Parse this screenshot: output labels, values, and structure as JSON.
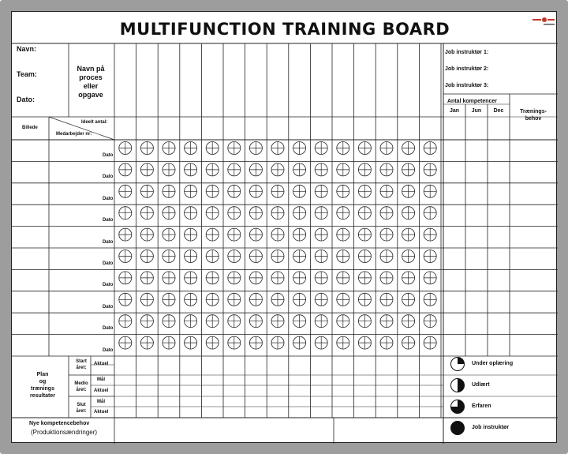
{
  "title": "MULTIFUNCTION TRAINING BOARD",
  "header": {
    "navn": "Navn:",
    "team": "Team:",
    "dato": "Dato:",
    "process_lines": [
      "Navn på",
      "proces",
      "eller",
      "opgave"
    ],
    "job_instructors": [
      "Job instruktør 1:",
      "Job instruktør 2:",
      "Job instruktør 3:"
    ],
    "antal_kompetencer": "Antal kompetencer",
    "months": [
      "Jan",
      "Jun",
      "Dec"
    ],
    "training_need_lines": [
      "Trænings-",
      "behov"
    ]
  },
  "subheader": {
    "billede": "Billede",
    "ideelt_antal": "Ideelt antal:",
    "medarbejder_nr": "Medarbejder nr:"
  },
  "rows": {
    "dato_label": "Dato",
    "count": 10,
    "columns": 15
  },
  "plan": {
    "label_lines": [
      "Plan",
      "og",
      "trænings",
      "resultater"
    ],
    "groups": [
      {
        "label_lines": [
          "Start",
          "året:"
        ],
        "items": [
          "Aktuel"
        ]
      },
      {
        "label_lines": [
          "Medio",
          "året:"
        ],
        "items": [
          "Mål",
          "Aktuel"
        ]
      },
      {
        "label_lines": [
          "Slut",
          "året:"
        ],
        "items": [
          "Mål",
          "Aktuel"
        ]
      }
    ]
  },
  "footer": {
    "new_needs": "Nye kompetencebehov",
    "production_changes": "(Produktionsændringer)"
  },
  "legend": [
    {
      "label": "Under oplæring",
      "quarters": 1
    },
    {
      "label": "Udlært",
      "quarters": 2
    },
    {
      "label": "Erfaren",
      "quarters": 3
    },
    {
      "label": "Job instruktør",
      "quarters": 4
    }
  ]
}
